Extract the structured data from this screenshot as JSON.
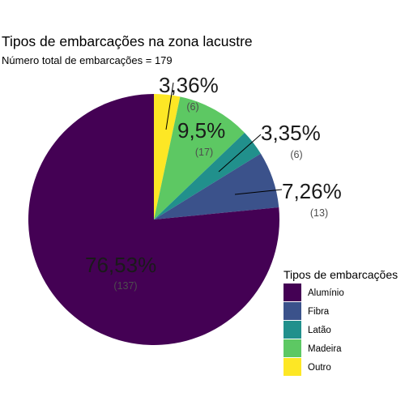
{
  "chart_data": {
    "type": "pie",
    "title": "Tipos de embarcações na zona lacustre",
    "subtitle": "Número total de embarcações = 179",
    "legend_title": "Tipos de embarcações",
    "legend_position": "right",
    "slices": [
      {
        "name": "Alumínio",
        "count": 137,
        "percent_label": "76,53%",
        "count_label": "(137)",
        "color": "#440154"
      },
      {
        "name": "Fibra",
        "count": 13,
        "percent_label": "7,26%",
        "count_label": "(13)",
        "color": "#3B528B"
      },
      {
        "name": "Latão",
        "count": 6,
        "percent_label": "3,35%",
        "count_label": "(6)",
        "color": "#21908C"
      },
      {
        "name": "Madeira",
        "count": 17,
        "percent_label": "9,5%",
        "count_label": "(17)",
        "color": "#5DC863"
      },
      {
        "name": "Outro",
        "count": 6,
        "percent_label": "3,36%",
        "count_label": "(6)",
        "color": "#FDE725"
      }
    ]
  }
}
